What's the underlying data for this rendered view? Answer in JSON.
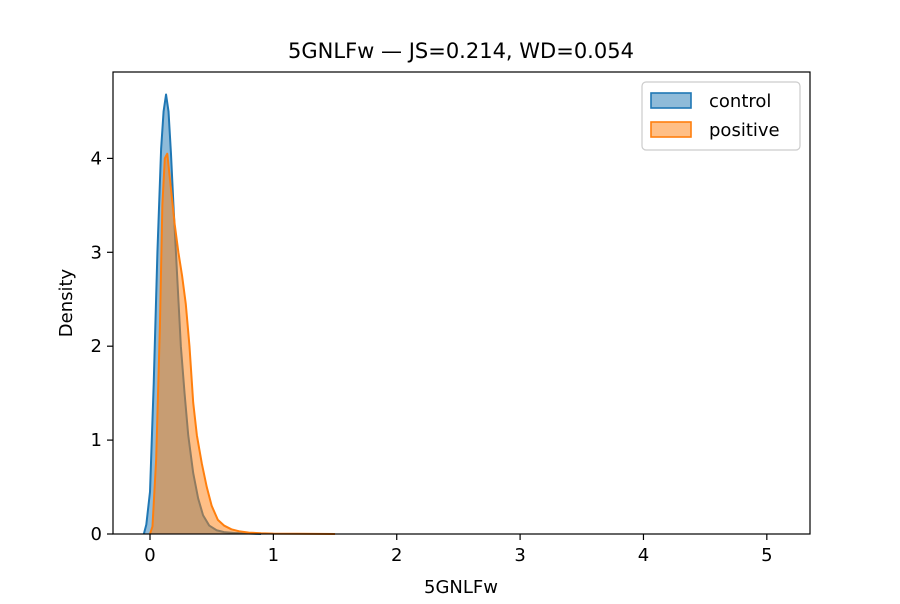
{
  "chart_data": {
    "type": "area",
    "title": "5GNLFw — JS=0.214, WD=0.054",
    "xlabel": "5GNLFw",
    "ylabel": "Density",
    "xlim": [
      -0.3,
      5.35
    ],
    "ylim": [
      0,
      4.92
    ],
    "xticks": [
      0,
      1,
      2,
      3,
      4,
      5
    ],
    "yticks": [
      0,
      1,
      2,
      3,
      4
    ],
    "grid": false,
    "legend_position": "top-right",
    "series": [
      {
        "name": "control",
        "color": "#1f77b4",
        "x": [
          -0.05,
          -0.03,
          0.0,
          0.03,
          0.06,
          0.09,
          0.11,
          0.13,
          0.15,
          0.17,
          0.19,
          0.21,
          0.23,
          0.25,
          0.28,
          0.31,
          0.35,
          0.39,
          0.43,
          0.48,
          0.54,
          0.6,
          0.7,
          0.8,
          0.9
        ],
        "y": [
          0.0,
          0.1,
          0.45,
          1.6,
          3.0,
          4.1,
          4.5,
          4.68,
          4.5,
          4.05,
          3.5,
          3.0,
          2.5,
          2.0,
          1.5,
          1.05,
          0.65,
          0.38,
          0.2,
          0.09,
          0.04,
          0.02,
          0.01,
          0.005,
          0.0
        ]
      },
      {
        "name": "positive",
        "color": "#ff7f0e",
        "x": [
          0.0,
          0.02,
          0.05,
          0.08,
          0.1,
          0.12,
          0.14,
          0.16,
          0.18,
          0.2,
          0.23,
          0.26,
          0.29,
          0.32,
          0.35,
          0.38,
          0.42,
          0.46,
          0.5,
          0.55,
          0.6,
          0.66,
          0.72,
          0.8,
          0.9,
          1.0,
          1.2,
          1.5
        ],
        "y": [
          0.0,
          0.08,
          0.8,
          2.2,
          3.5,
          4.0,
          4.05,
          3.8,
          3.55,
          3.3,
          3.0,
          2.75,
          2.45,
          2.0,
          1.4,
          1.05,
          0.75,
          0.5,
          0.3,
          0.15,
          0.09,
          0.05,
          0.03,
          0.015,
          0.008,
          0.004,
          0.002,
          0.0
        ]
      }
    ]
  }
}
